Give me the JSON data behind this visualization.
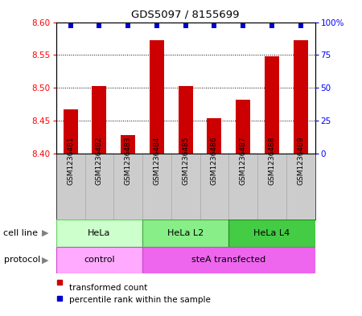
{
  "title": "GDS5097 / 8155699",
  "samples": [
    "GSM1236481",
    "GSM1236482",
    "GSM1236483",
    "GSM1236484",
    "GSM1236485",
    "GSM1236486",
    "GSM1236487",
    "GSM1236488",
    "GSM1236489"
  ],
  "bar_values": [
    8.467,
    8.502,
    8.428,
    8.572,
    8.502,
    8.453,
    8.482,
    8.548,
    8.572
  ],
  "percentile_values": [
    97,
    97,
    97,
    97,
    97,
    97,
    97,
    97,
    97
  ],
  "ylim_left": [
    8.4,
    8.6
  ],
  "ylim_right": [
    0,
    100
  ],
  "yticks_left": [
    8.4,
    8.45,
    8.5,
    8.55,
    8.6
  ],
  "yticks_right": [
    0,
    25,
    50,
    75,
    100
  ],
  "ytick_labels_right": [
    "0",
    "25",
    "50",
    "75",
    "100%"
  ],
  "bar_color": "#cc0000",
  "dot_color": "#0000cc",
  "cell_line_groups": [
    {
      "label": "HeLa",
      "start": 0,
      "end": 3,
      "color": "#ccffcc",
      "edge": "#66cc66"
    },
    {
      "label": "HeLa L2",
      "start": 3,
      "end": 6,
      "color": "#88ee88",
      "edge": "#44aa44"
    },
    {
      "label": "HeLa L4",
      "start": 6,
      "end": 9,
      "color": "#44cc44",
      "edge": "#228822"
    }
  ],
  "protocol_groups": [
    {
      "label": "control",
      "start": 0,
      "end": 3,
      "color": "#ffaaff",
      "edge": "#cc44cc"
    },
    {
      "label": "steA transfected",
      "start": 3,
      "end": 9,
      "color": "#ee66ee",
      "edge": "#cc44cc"
    }
  ],
  "legend_bar_label": "transformed count",
  "legend_dot_label": "percentile rank within the sample",
  "cell_line_label": "cell line",
  "protocol_label": "protocol",
  "sample_box_color": "#cccccc",
  "sample_box_edge": "#aaaaaa"
}
